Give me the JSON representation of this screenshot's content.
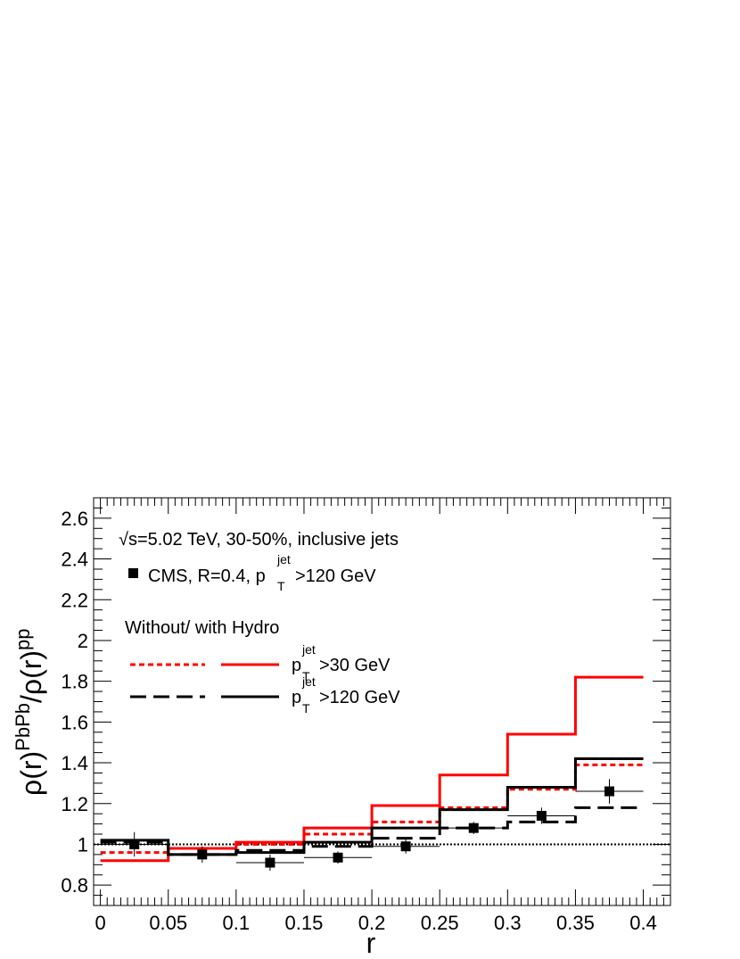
{
  "chart_data": {
    "type": "line",
    "subtype": "histogram-step",
    "xlabel": "r",
    "ylabel": {
      "base1": "ρ(r)",
      "sup1": "PbPb",
      "slash": "/",
      "base2": "ρ(r)",
      "sup2": "pp"
    },
    "xlim": [
      -0.005,
      0.42
    ],
    "ylim": [
      0.7,
      2.7
    ],
    "x_ticks": [
      0,
      0.05,
      0.1,
      0.15,
      0.2,
      0.25,
      0.3,
      0.35,
      0.4
    ],
    "x_tick_labels": [
      "0",
      "0.05",
      "0.1",
      "0.15",
      "0.2",
      "0.25",
      "0.3",
      "0.35",
      "0.4"
    ],
    "y_ticks": [
      0.8,
      1,
      1.2,
      1.4,
      1.6,
      1.8,
      2,
      2.2,
      2.4,
      2.6
    ],
    "y_tick_labels": [
      "0.8",
      "1",
      "1.2",
      "1.4",
      "1.6",
      "1.8",
      "2",
      "2.2",
      "2.4",
      "2.6"
    ],
    "bin_edges": [
      0,
      0.05,
      0.1,
      0.15,
      0.2,
      0.25,
      0.3,
      0.35,
      0.4
    ],
    "grid": false,
    "reference_line": {
      "y": 1,
      "style": "dotted"
    },
    "annotations": {
      "energy": {
        "sqrt": "√",
        "text": "s=5.02 TeV, 30-50%, inclusive jets"
      },
      "cms_entry": {
        "prefix": "CMS, R=0.4, p",
        "sub": "T",
        "sup": "jet",
        "suffix": ">120 GeV"
      },
      "legend_header": "Without/  with Hydro",
      "legend_row1": {
        "prefix": "p",
        "sub": "T",
        "sup": "jet",
        "suffix": ">30 GeV"
      },
      "legend_row2": {
        "prefix": "p",
        "sub": "T",
        "sup": "jet",
        "suffix": ">120 GeV"
      }
    },
    "legend_placement": "top-left",
    "series": [
      {
        "key": "pt30_no_hydro",
        "values": [
          0.96,
          0.98,
          1.0,
          1.05,
          1.11,
          1.18,
          1.27,
          1.39
        ],
        "color": "#ff0000",
        "style": "dotted"
      },
      {
        "key": "pt30_hydro",
        "values": [
          0.92,
          0.98,
          1.01,
          1.08,
          1.19,
          1.34,
          1.54,
          1.82
        ],
        "color": "#ff0000",
        "style": "solid"
      },
      {
        "key": "pt120_no_hydro",
        "values": [
          1.01,
          0.95,
          0.97,
          0.99,
          1.03,
          1.08,
          1.11,
          1.18
        ],
        "color": "#000000",
        "style": "dashed"
      },
      {
        "key": "pt120_hydro",
        "values": [
          1.02,
          0.95,
          0.96,
          1.01,
          1.08,
          1.17,
          1.28,
          1.42
        ],
        "color": "#000000",
        "style": "solid"
      }
    ],
    "cms_points": {
      "x": [
        0.025,
        0.075,
        0.125,
        0.175,
        0.225,
        0.275,
        0.325,
        0.375
      ],
      "y": [
        1.0,
        0.95,
        0.91,
        0.935,
        0.99,
        1.08,
        1.14,
        1.26
      ],
      "yerr": [
        0.06,
        0.04,
        0.04,
        0.03,
        0.035,
        0.03,
        0.04,
        0.06
      ],
      "xerr": 0.025,
      "color": "#000000"
    }
  }
}
